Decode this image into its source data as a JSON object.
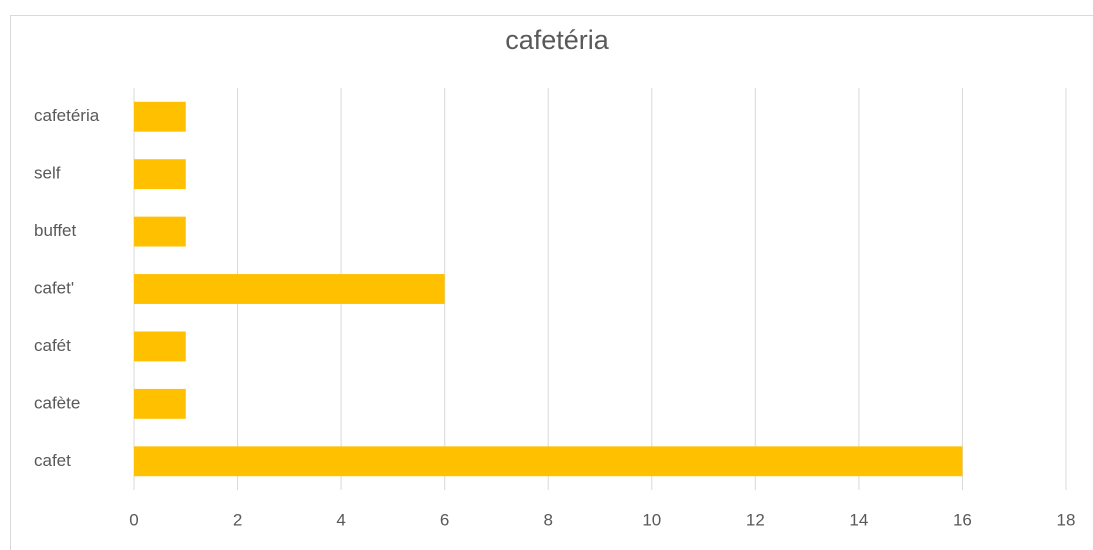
{
  "chart_data": {
    "type": "bar",
    "orientation": "horizontal",
    "title": "cafetéria",
    "categories": [
      "cafetéria",
      "self",
      "buffet",
      "cafet'",
      "cafét",
      "cafète",
      "cafet"
    ],
    "values": [
      1,
      1,
      1,
      6,
      1,
      1,
      16
    ],
    "color": "#ffc000",
    "xlim": [
      0,
      18
    ],
    "xticks": [
      0,
      2,
      4,
      6,
      8,
      10,
      12,
      14,
      16,
      18
    ],
    "grid": true
  }
}
